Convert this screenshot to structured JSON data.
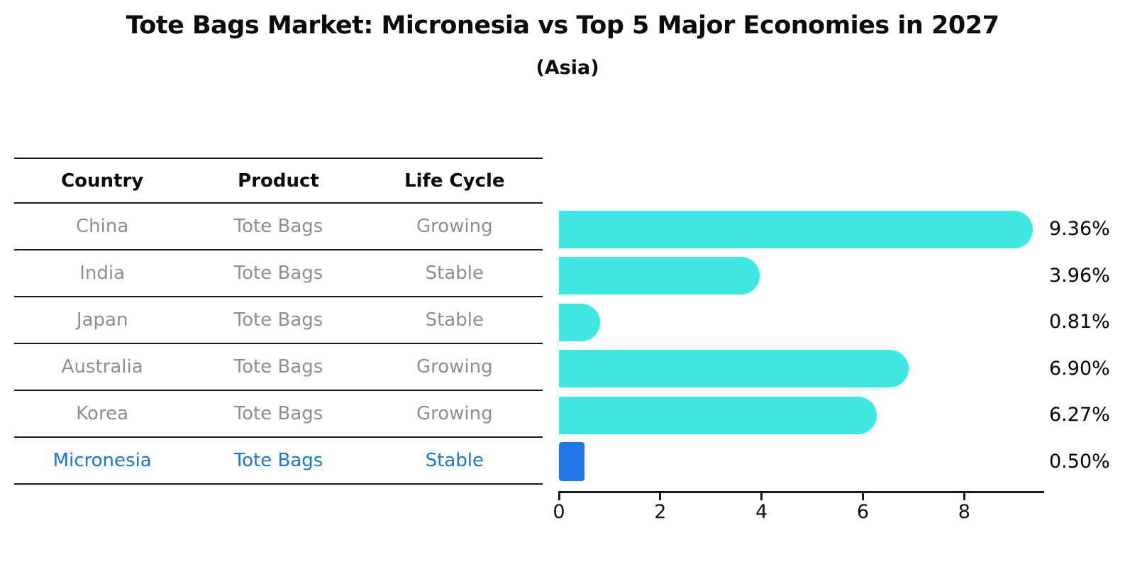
{
  "title": "Tote Bags Market: Micronesia vs Top 5 Major Economies in 2027",
  "subtitle": "(Asia)",
  "table": {
    "headers": [
      "Country",
      "Product",
      "Life Cycle"
    ],
    "rows": [
      {
        "country": "China",
        "product": "Tote Bags",
        "life_cycle": "Growing",
        "highlight": false
      },
      {
        "country": "India",
        "product": "Tote Bags",
        "life_cycle": "Stable",
        "highlight": false
      },
      {
        "country": "Japan",
        "product": "Tote Bags",
        "life_cycle": "Stable",
        "highlight": false
      },
      {
        "country": "Australia",
        "product": "Tote Bags",
        "life_cycle": "Growing",
        "highlight": false
      },
      {
        "country": "Korea",
        "product": "Tote Bags",
        "life_cycle": "Growing",
        "highlight": false
      },
      {
        "country": "Micronesia",
        "product": "Tote Bags",
        "life_cycle": "Stable",
        "highlight": true
      }
    ]
  },
  "chart_data": {
    "type": "bar",
    "orientation": "horizontal",
    "title": "Tote Bags Market: Micronesia vs Top 5 Major Economies in 2027",
    "subtitle": "(Asia)",
    "categories": [
      "China",
      "India",
      "Japan",
      "Australia",
      "Korea",
      "Micronesia"
    ],
    "values": [
      9.36,
      3.96,
      0.81,
      6.9,
      6.27,
      0.5
    ],
    "value_labels": [
      "9.36%",
      "3.96%",
      "0.81%",
      "6.90%",
      "6.27%",
      "0.50%"
    ],
    "highlight_index": 5,
    "x_tick_labels": [
      "0",
      "2",
      "4",
      "6",
      "8"
    ],
    "x_tick_values": [
      0,
      2,
      4,
      6,
      8
    ],
    "xlim": [
      0,
      9.55
    ],
    "grid": false,
    "legend": null,
    "xlabel": "",
    "ylabel": ""
  },
  "colors": {
    "bar": "#40E6E1",
    "highlight_bar": "#2176E8",
    "highlight_text": "#1B74D1",
    "muted_text": "#8E8E8E",
    "heading_text": "#0A0A0A",
    "axis": "#1A1A1A"
  }
}
